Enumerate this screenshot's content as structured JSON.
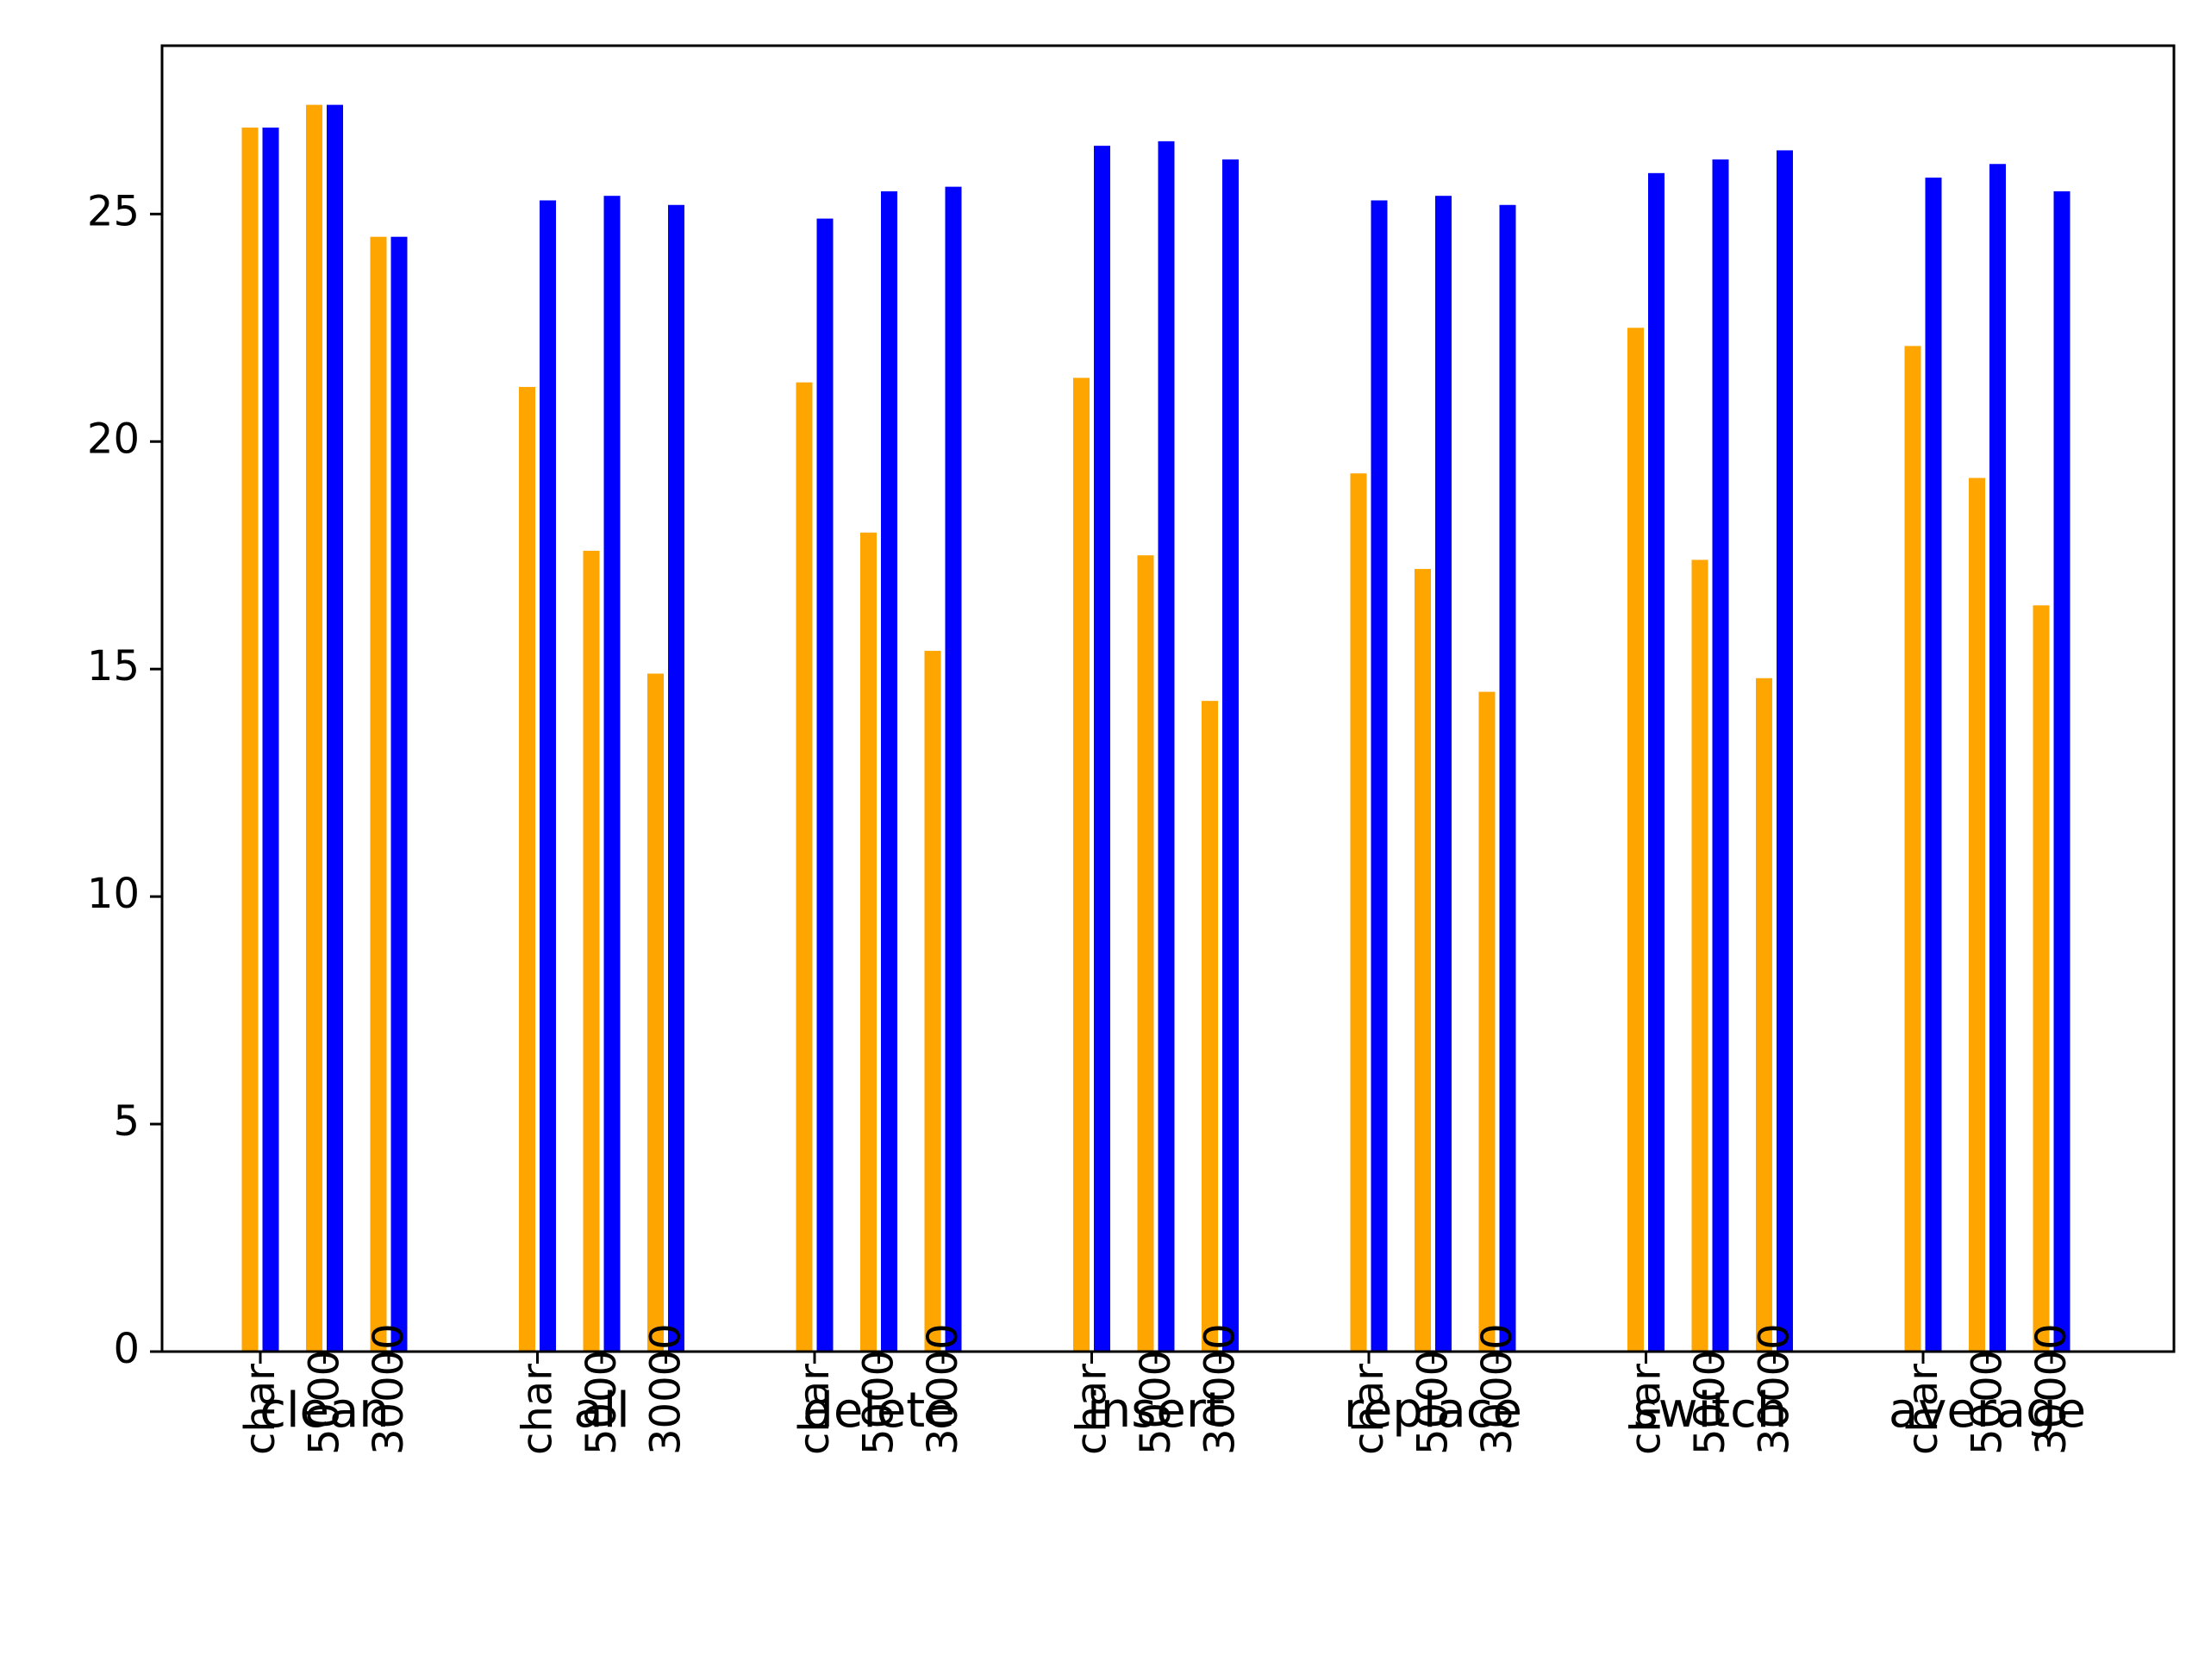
{
  "chart_data": {
    "type": "bar",
    "groups": [
      "clean",
      "all",
      "delete",
      "insert",
      "replace",
      "switch",
      "average"
    ],
    "subcategories": [
      "char",
      "5000",
      "30000"
    ],
    "series": [
      {
        "color": "#FFA500",
        "values": [
          [
            26.9,
            27.4,
            24.5
          ],
          [
            21.2,
            17.6,
            14.9
          ],
          [
            21.3,
            18.0,
            15.4
          ],
          [
            21.4,
            17.5,
            14.3
          ],
          [
            19.3,
            17.2,
            14.5
          ],
          [
            22.5,
            17.4,
            14.8
          ],
          [
            22.1,
            19.2,
            16.4
          ]
        ]
      },
      {
        "color": "#0000FF",
        "values": [
          [
            26.9,
            27.4,
            24.5
          ],
          [
            25.3,
            25.4,
            25.2
          ],
          [
            24.9,
            25.5,
            25.6
          ],
          [
            26.5,
            26.6,
            26.2
          ],
          [
            25.3,
            25.4,
            25.2
          ],
          [
            25.9,
            26.2,
            26.4
          ],
          [
            25.8,
            26.1,
            25.5
          ]
        ]
      }
    ],
    "ylim": [
      0,
      28.7
    ],
    "yticks": [
      0,
      5,
      10,
      15,
      20,
      25
    ],
    "grid": false,
    "title": "",
    "xlabel": "",
    "ylabel": ""
  }
}
